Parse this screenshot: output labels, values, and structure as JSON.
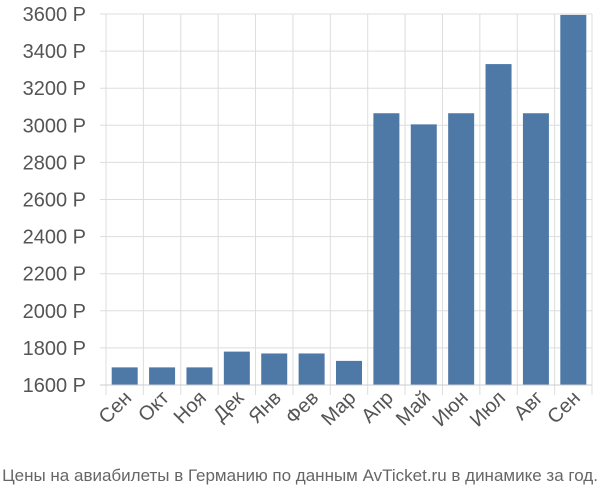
{
  "chart_data": {
    "type": "bar",
    "categories": [
      "Сен",
      "Окт",
      "Ноя",
      "Дек",
      "Янв",
      "Фев",
      "Мар",
      "Апр",
      "Май",
      "Июн",
      "Июл",
      "Авг",
      "Сен"
    ],
    "values": [
      1695,
      1695,
      1695,
      1780,
      1770,
      1770,
      1730,
      3065,
      3005,
      3065,
      3330,
      3065,
      3595
    ],
    "ylim": [
      1600,
      3600
    ],
    "yticks": [
      1600,
      1800,
      2000,
      2200,
      2400,
      2600,
      2800,
      3000,
      3200,
      3400,
      3600
    ],
    "ytick_suffix": " Р",
    "grid": true,
    "legend": "none",
    "bar_color": "#4e79a7",
    "grid_color": "#dddddd",
    "caption": "Цены на авиабилеты в Германию по данным AvTicket.ru в динамике за год."
  }
}
